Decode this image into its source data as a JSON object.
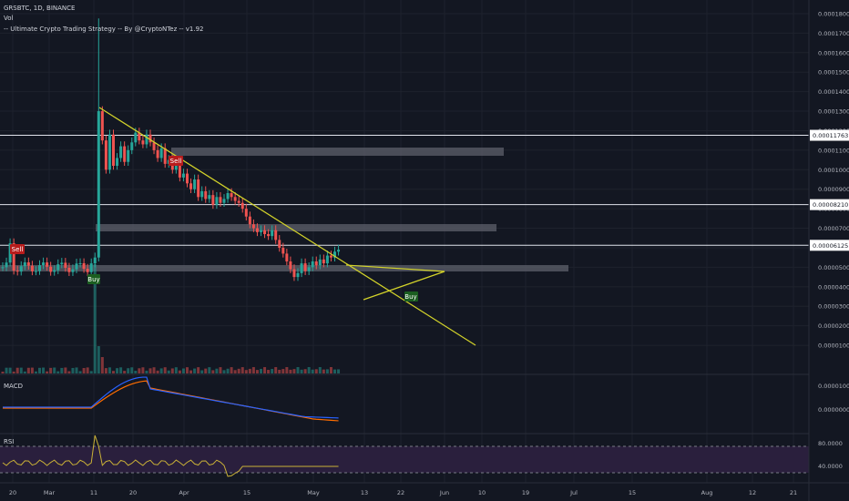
{
  "header": {
    "symbol_line": "GRSBTC, 1D, BINANCE",
    "vol_label": "Vol",
    "strategy_line": "-- Ultimate Crypto Trading Strategy -- By @CryptoNTez -- v1.92"
  },
  "price_axis": {
    "ticks": [
      "0.00019000",
      "0.00018000",
      "0.00017000",
      "0.00016000",
      "0.00015000",
      "0.00014000",
      "0.00013000",
      "0.00012000",
      "0.00011000",
      "0.00010000",
      "0.00009000",
      "0.00008000",
      "0.00007000",
      "0.00006000",
      "0.00005000",
      "0.00004000",
      "0.00003000",
      "0.00002000",
      "0.00001000"
    ],
    "tick_values": [
      19,
      18,
      17,
      16,
      15,
      14,
      13,
      12,
      11,
      10,
      9,
      8,
      7,
      6,
      5,
      4,
      3,
      2,
      1
    ],
    "highlighted": [
      {
        "label": "0.00011763",
        "value": 11.763
      },
      {
        "label": "0.00008210",
        "value": 8.21
      },
      {
        "label": "0.00006125",
        "value": 6.125
      }
    ]
  },
  "macd": {
    "label": "MACD",
    "ticks": [
      "0.00001000",
      "0.00000000"
    ]
  },
  "rsi": {
    "label": "RSI",
    "ticks": [
      "80.0000",
      "40.0000"
    ]
  },
  "time_axis": {
    "labels": [
      "20",
      "Mar",
      "11",
      "20",
      "Apr",
      "15",
      "May",
      "13",
      "22",
      "Jun",
      "10",
      "19",
      "Jul",
      "15",
      "Aug",
      "12",
      "21"
    ]
  },
  "signals": [
    {
      "text": "Sell",
      "type": "sell"
    },
    {
      "text": "Buy",
      "type": "buy"
    },
    {
      "text": "Sell",
      "type": "sell"
    },
    {
      "text": "Buy",
      "type": "buy"
    }
  ],
  "colors": {
    "background": "#131722",
    "up": "#26a69a",
    "down": "#ef5350",
    "trendline": "#d4d42a",
    "macd": "#2962ff",
    "signal": "#ff6d00",
    "rsi": "#c9b037",
    "rsi_band": "#2a1f3d",
    "zone": "#5d606b",
    "sell": "#b71c1c",
    "buy": "#1b5e20"
  }
}
